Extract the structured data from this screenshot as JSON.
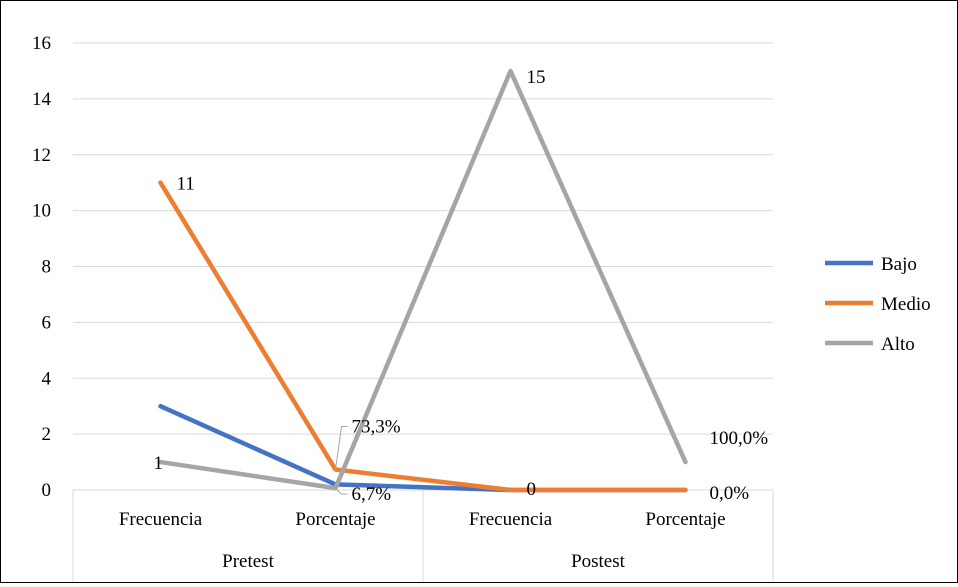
{
  "chart_data": {
    "type": "line",
    "title": "",
    "xlabel": "",
    "ylabel": "",
    "ylim": [
      0,
      16
    ],
    "y_ticks": [
      "0",
      "2",
      "4",
      "6",
      "8",
      "10",
      "12",
      "14",
      "16"
    ],
    "grid": true,
    "legend_position": "right",
    "group_categories": [
      "Pretest",
      "Postest"
    ],
    "categories": [
      "Frecuencia",
      "Porcentaje",
      "Frecuencia",
      "Porcentaje"
    ],
    "series": [
      {
        "name": "Bajo",
        "color": "#4472C4",
        "values": [
          3,
          0.2,
          0,
          0
        ]
      },
      {
        "name": "Medio",
        "color": "#ED7D31",
        "values": [
          11,
          0.733,
          0,
          0
        ]
      },
      {
        "name": "Alto",
        "color": "#A5A5A5",
        "values": [
          1,
          0.067,
          15,
          1
        ]
      }
    ],
    "data_labels": [
      {
        "series": "Medio",
        "point": 0,
        "text": "11"
      },
      {
        "series": "Medio",
        "point": 1,
        "text": "73,3%"
      },
      {
        "series": "Alto",
        "point": 0,
        "text": "1"
      },
      {
        "series": "Alto",
        "point": 1,
        "text": "6,7%"
      },
      {
        "series": "Alto",
        "point": 2,
        "text": "15"
      },
      {
        "series": "Alto",
        "point": 3,
        "text": "100,0%"
      },
      {
        "series": "Medio",
        "point": 2,
        "text": "0"
      },
      {
        "series": "Medio",
        "point": 3,
        "text": "0,0%"
      }
    ]
  }
}
